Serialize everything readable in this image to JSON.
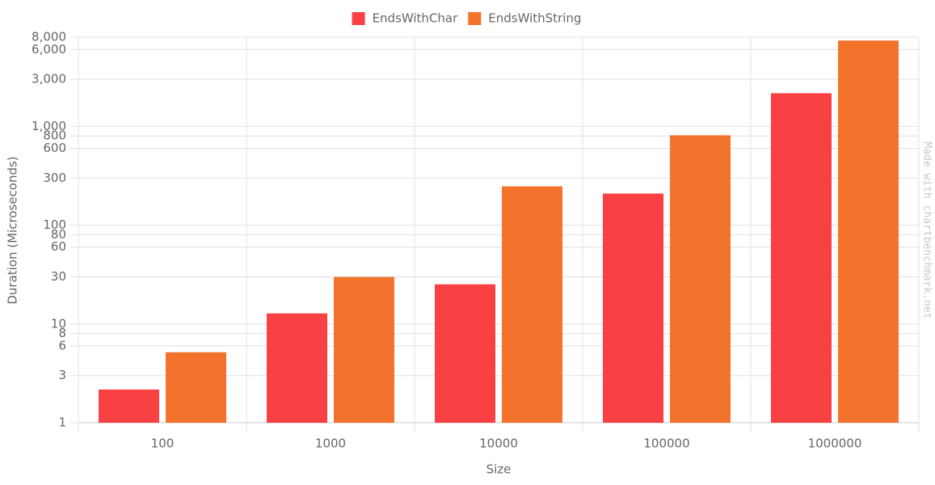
{
  "chart_data": {
    "type": "bar",
    "x_label": "Size",
    "y_label": "Duration (Microseconds)",
    "watermark": "Made with chartbenchmark.net",
    "categories": [
      "100",
      "1000",
      "10000",
      "100000",
      "1000000"
    ],
    "series": [
      {
        "name": "EndsWithChar",
        "color": "#f94144",
        "values": [
          2.17,
          12.8,
          25.2,
          209,
          2168
        ]
      },
      {
        "name": "EndsWithString",
        "color": "#f3722c",
        "values": [
          5.17,
          29.9,
          247,
          813,
          7396
        ]
      }
    ],
    "log_scale": true,
    "grid": true,
    "legend": "top",
    "ylim": [
      1,
      8000
    ],
    "yticks": [
      1,
      3,
      6,
      8,
      10,
      30,
      60,
      80,
      100,
      300,
      600,
      800,
      {
        "value": 1000,
        "label": "1,000"
      },
      {
        "value": 3000,
        "label": "3,000"
      },
      {
        "value": 6000,
        "label": "6,000"
      },
      {
        "value": 8000,
        "label": "8,000"
      }
    ]
  }
}
